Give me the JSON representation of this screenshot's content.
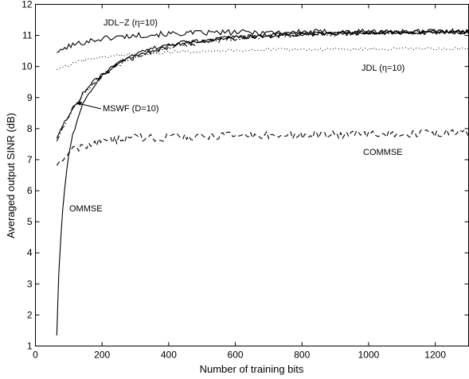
{
  "chart_data": {
    "type": "line",
    "xlabel": "Number of training bits",
    "ylabel": "Averaged output SINR (dB)",
    "xlim": [
      0,
      1300
    ],
    "ylim": [
      1,
      12
    ],
    "xticks": [
      0,
      200,
      400,
      600,
      800,
      1000,
      1200
    ],
    "yticks": [
      1,
      2,
      3,
      4,
      5,
      6,
      7,
      8,
      9,
      10,
      11,
      12
    ],
    "grid": false,
    "annotations": [
      "JDL−Z (η=10)",
      "JDL (η=10)",
      "MSWF (D=10)",
      "COMMSE",
      "OMMSE"
    ],
    "series": [
      {
        "style": "solid",
        "color": "#000000",
        "x": [
          64,
          100,
          150,
          200,
          250,
          300,
          350,
          400,
          450,
          500,
          600,
          700,
          800,
          900,
          1000,
          1100,
          1200,
          1300
        ],
        "y": [
          10.45,
          10.65,
          10.8,
          10.9,
          10.95,
          11.0,
          11.03,
          11.05,
          11.07,
          11.08,
          11.1,
          11.1,
          11.11,
          11.12,
          11.12,
          11.12,
          11.13,
          11.13
        ],
        "noise": 0.09
      },
      {
        "style": "dotted",
        "color": "#000000",
        "x": [
          64,
          100,
          150,
          200,
          250,
          300,
          350,
          400,
          450,
          500,
          600,
          700,
          800,
          900,
          1000,
          1100,
          1200,
          1300
        ],
        "y": [
          9.9,
          10.05,
          10.2,
          10.3,
          10.36,
          10.4,
          10.43,
          10.46,
          10.48,
          10.5,
          10.52,
          10.54,
          10.55,
          10.56,
          10.56,
          10.57,
          10.57,
          10.57
        ],
        "noise": 0.05
      },
      {
        "style": "solid",
        "color": "#000000",
        "x": [
          64,
          100,
          150,
          200,
          250,
          300,
          350,
          400,
          450,
          500,
          600,
          700,
          800,
          900,
          1000,
          1100,
          1200,
          1300
        ],
        "y": [
          7.7,
          8.45,
          9.25,
          9.75,
          10.1,
          10.35,
          10.52,
          10.65,
          10.74,
          10.82,
          10.93,
          11.0,
          11.04,
          11.07,
          11.09,
          11.1,
          11.11,
          11.12
        ],
        "noise": 0.07
      },
      {
        "style": "dashdot",
        "color": "#000000",
        "x": [
          64,
          100,
          150,
          200,
          250,
          300,
          350,
          400,
          450,
          500,
          600,
          700,
          800,
          900,
          1000,
          1100,
          1200,
          1300
        ],
        "y": [
          7.6,
          8.4,
          9.2,
          9.7,
          10.05,
          10.3,
          10.48,
          10.6,
          10.7,
          10.78,
          10.9,
          10.97,
          11.02,
          11.05,
          11.08,
          11.09,
          11.1,
          11.1
        ],
        "noise": 0.07
      },
      {
        "style": "dashed",
        "color": "#000000",
        "x": [
          64,
          100,
          150,
          200,
          250,
          300,
          400,
          500,
          600,
          700,
          800,
          900,
          1000,
          1100,
          1200,
          1300
        ],
        "y": [
          6.8,
          7.25,
          7.45,
          7.6,
          7.65,
          7.7,
          7.72,
          7.75,
          7.77,
          7.78,
          7.8,
          7.8,
          7.82,
          7.83,
          7.85,
          7.87
        ],
        "noise": 0.13
      },
      {
        "style": "solid",
        "color": "#000000",
        "x": [
          64,
          70,
          80,
          90,
          100,
          110,
          125,
          140,
          160,
          180,
          200,
          240,
          280,
          320,
          360,
          400,
          450,
          500,
          600,
          700,
          800,
          900,
          1000,
          1100,
          1200,
          1300
        ],
        "y": [
          1.35,
          3.3,
          5.2,
          6.3,
          7.15,
          7.7,
          8.3,
          8.75,
          9.15,
          9.45,
          9.7,
          10.05,
          10.3,
          10.48,
          10.6,
          10.7,
          10.78,
          10.84,
          10.93,
          11.0,
          11.04,
          11.07,
          11.09,
          11.1,
          11.11,
          11.12
        ],
        "noise": 0.06
      }
    ]
  }
}
